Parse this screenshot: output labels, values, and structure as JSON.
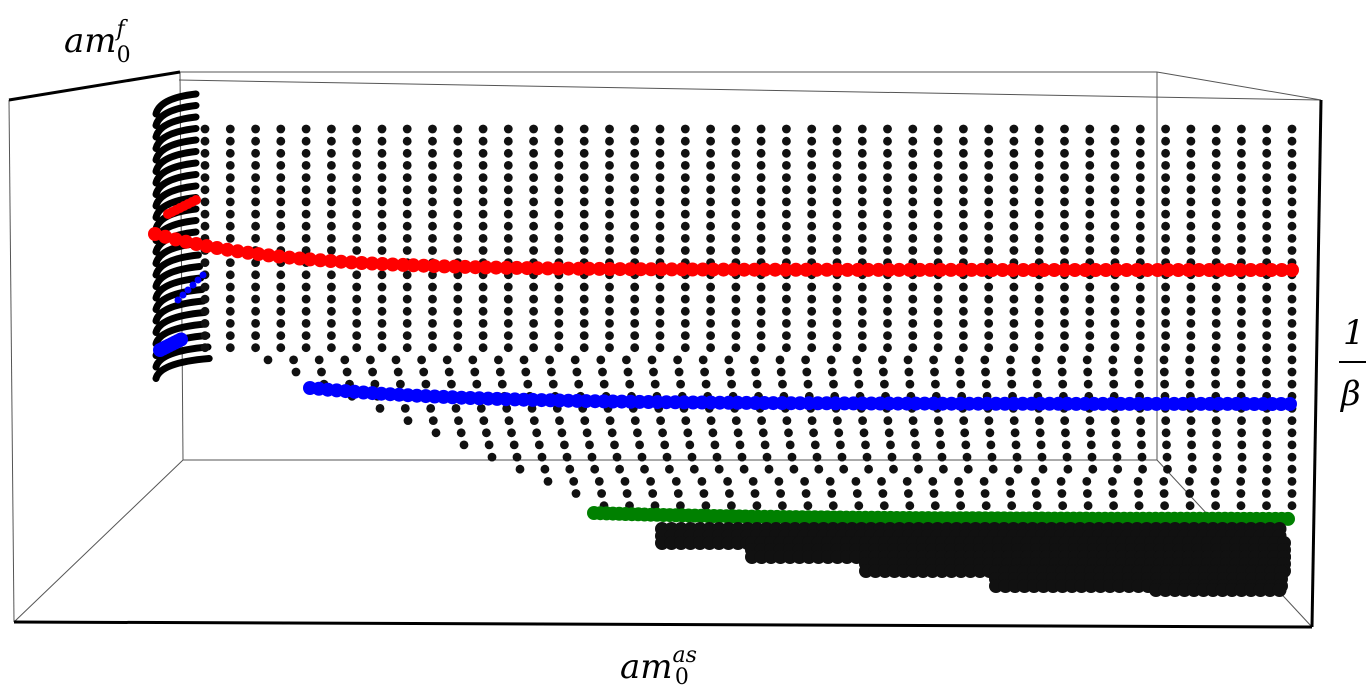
{
  "chart_data": {
    "type": "scatter",
    "projection": "3d-box",
    "axes": {
      "x": {
        "label": "am0as",
        "label_base": "am",
        "label_sup": "as",
        "label_sub": "0"
      },
      "y": {
        "label": "am0f",
        "label_base": "am",
        "label_sup": "f",
        "label_sub": "0"
      },
      "z": {
        "label": "1/β",
        "label_num": "1",
        "label_den": "β"
      }
    },
    "grid_rows": [
      {
        "row": 0,
        "depth_start": 0.13
      },
      {
        "row": 1,
        "depth_start": 0.13
      },
      {
        "row": 2,
        "depth_start": 0.13
      },
      {
        "row": 3,
        "depth_start": 0.13
      },
      {
        "row": 4,
        "depth_start": 0.13
      },
      {
        "row": 5,
        "depth_start": 0.13
      },
      {
        "row": 6,
        "depth_start": 0.13
      },
      {
        "row": 7,
        "depth_start": 0.13
      },
      {
        "row": 8,
        "depth_start": 0.13
      },
      {
        "row": 9,
        "depth_start": 0.13
      },
      {
        "row": 10,
        "depth_start": 0.13
      },
      {
        "row": 11,
        "depth_start": 0.13
      },
      {
        "row": 12,
        "depth_start": 0.13
      },
      {
        "row": 13,
        "depth_start": 0.13
      },
      {
        "row": 14,
        "depth_start": 0.13
      },
      {
        "row": 15,
        "depth_start": 0.13
      },
      {
        "row": 16,
        "depth_start": 0.13
      },
      {
        "row": 17,
        "depth_start": 0.13
      },
      {
        "row": 18,
        "depth_start": 0.13
      },
      {
        "row": 19,
        "depth_start": 0.15
      },
      {
        "row": 20,
        "depth_start": 0.17
      },
      {
        "row": 21,
        "depth_start": 0.19
      },
      {
        "row": 22,
        "depth_start": 0.21
      },
      {
        "row": 23,
        "depth_start": 0.23
      },
      {
        "row": 24,
        "depth_start": 0.25
      },
      {
        "row": 25,
        "depth_start": 0.27
      },
      {
        "row": 26,
        "depth_start": 0.29
      },
      {
        "row": 27,
        "depth_start": 0.31
      },
      {
        "row": 28,
        "depth_start": 0.33
      },
      {
        "row": 29,
        "depth_start": 0.35
      },
      {
        "row": 30,
        "depth_start": 0.37
      },
      {
        "row": 31,
        "depth_start": 0.39
      }
    ],
    "series": [
      {
        "color": "#000000",
        "kind": "grid"
      },
      {
        "color": "#ff0000",
        "kind": "line",
        "row": 10.5
      },
      {
        "color": "#0000ff",
        "kind": "line",
        "row": 19.5
      },
      {
        "color": "#008000",
        "kind": "line",
        "row": 28.6
      },
      {
        "color": "#000000",
        "kind": "bottom-stack"
      }
    ],
    "grid": false,
    "legend": "none"
  }
}
